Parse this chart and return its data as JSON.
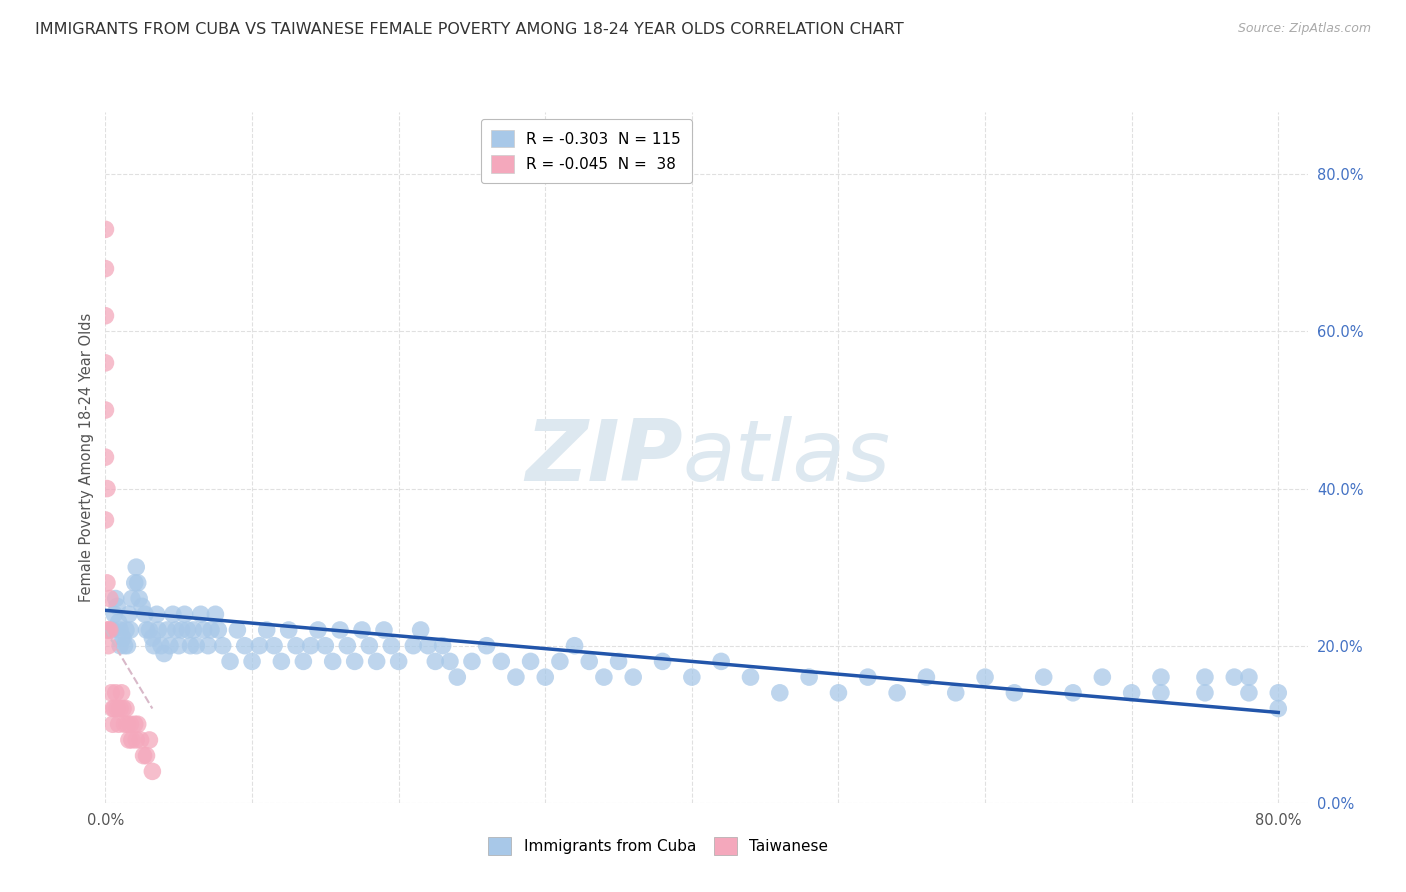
{
  "title": "IMMIGRANTS FROM CUBA VS TAIWANESE FEMALE POVERTY AMONG 18-24 YEAR OLDS CORRELATION CHART",
  "source": "Source: ZipAtlas.com",
  "ylabel": "Female Poverty Among 18-24 Year Olds",
  "legend_rn": [
    {
      "R": "-0.303",
      "N": "115",
      "color": "#a8c8e8"
    },
    {
      "R": "-0.045",
      "N": " 38",
      "color": "#f4a8bc"
    }
  ],
  "legend_bottom": [
    {
      "label": "Immigrants from Cuba",
      "color": "#a8c8e8"
    },
    {
      "label": "Taiwanese",
      "color": "#f4a8bc"
    }
  ],
  "watermark_zip": "ZIP",
  "watermark_atlas": "atlas",
  "background_color": "#ffffff",
  "grid_color": "#e0e0e0",
  "ytick_values": [
    0.0,
    0.2,
    0.4,
    0.6,
    0.8
  ],
  "xtick_values": [
    0.0,
    0.1,
    0.2,
    0.3,
    0.4,
    0.5,
    0.6,
    0.7,
    0.8
  ],
  "xlim": [
    0.0,
    0.82
  ],
  "ylim": [
    0.0,
    0.88
  ],
  "cuba_color": "#a8c8e8",
  "taiwan_color": "#f4a8bc",
  "trendline_cuba_color": "#2255aa",
  "trendline_taiwan_color": "#d8b8c8",
  "cuba_x": [
    0.005,
    0.006,
    0.007,
    0.008,
    0.009,
    0.01,
    0.01,
    0.012,
    0.013,
    0.014,
    0.015,
    0.016,
    0.017,
    0.018,
    0.02,
    0.021,
    0.022,
    0.023,
    0.025,
    0.027,
    0.028,
    0.03,
    0.032,
    0.033,
    0.035,
    0.036,
    0.038,
    0.04,
    0.042,
    0.044,
    0.046,
    0.048,
    0.05,
    0.052,
    0.054,
    0.056,
    0.058,
    0.06,
    0.062,
    0.065,
    0.067,
    0.07,
    0.072,
    0.075,
    0.077,
    0.08,
    0.085,
    0.09,
    0.095,
    0.1,
    0.105,
    0.11,
    0.115,
    0.12,
    0.125,
    0.13,
    0.135,
    0.14,
    0.145,
    0.15,
    0.155,
    0.16,
    0.165,
    0.17,
    0.175,
    0.18,
    0.185,
    0.19,
    0.195,
    0.2,
    0.21,
    0.215,
    0.22,
    0.225,
    0.23,
    0.235,
    0.24,
    0.25,
    0.26,
    0.27,
    0.28,
    0.29,
    0.3,
    0.31,
    0.32,
    0.33,
    0.34,
    0.35,
    0.36,
    0.38,
    0.4,
    0.42,
    0.44,
    0.46,
    0.48,
    0.5,
    0.52,
    0.54,
    0.56,
    0.58,
    0.6,
    0.62,
    0.64,
    0.66,
    0.68,
    0.7,
    0.72,
    0.75,
    0.77,
    0.78,
    0.8,
    0.8,
    0.78,
    0.75,
    0.72
  ],
  "cuba_y": [
    0.22,
    0.24,
    0.26,
    0.25,
    0.23,
    0.22,
    0.2,
    0.21,
    0.2,
    0.22,
    0.2,
    0.24,
    0.22,
    0.26,
    0.28,
    0.3,
    0.28,
    0.26,
    0.25,
    0.24,
    0.22,
    0.22,
    0.21,
    0.2,
    0.24,
    0.22,
    0.2,
    0.19,
    0.22,
    0.2,
    0.24,
    0.22,
    0.2,
    0.22,
    0.24,
    0.22,
    0.2,
    0.22,
    0.2,
    0.24,
    0.22,
    0.2,
    0.22,
    0.24,
    0.22,
    0.2,
    0.18,
    0.22,
    0.2,
    0.18,
    0.2,
    0.22,
    0.2,
    0.18,
    0.22,
    0.2,
    0.18,
    0.2,
    0.22,
    0.2,
    0.18,
    0.22,
    0.2,
    0.18,
    0.22,
    0.2,
    0.18,
    0.22,
    0.2,
    0.18,
    0.2,
    0.22,
    0.2,
    0.18,
    0.2,
    0.18,
    0.16,
    0.18,
    0.2,
    0.18,
    0.16,
    0.18,
    0.16,
    0.18,
    0.2,
    0.18,
    0.16,
    0.18,
    0.16,
    0.18,
    0.16,
    0.18,
    0.16,
    0.14,
    0.16,
    0.14,
    0.16,
    0.14,
    0.16,
    0.14,
    0.16,
    0.14,
    0.16,
    0.14,
    0.16,
    0.14,
    0.16,
    0.14,
    0.16,
    0.14,
    0.12,
    0.14,
    0.16,
    0.16,
    0.14
  ],
  "taiwan_x": [
    0.0,
    0.0,
    0.0,
    0.0,
    0.0,
    0.0,
    0.0,
    0.001,
    0.001,
    0.001,
    0.002,
    0.002,
    0.003,
    0.003,
    0.004,
    0.005,
    0.005,
    0.006,
    0.007,
    0.008,
    0.009,
    0.01,
    0.011,
    0.012,
    0.013,
    0.014,
    0.015,
    0.016,
    0.017,
    0.018,
    0.02,
    0.021,
    0.022,
    0.024,
    0.026,
    0.028,
    0.03,
    0.032
  ],
  "taiwan_y": [
    0.73,
    0.68,
    0.62,
    0.56,
    0.5,
    0.44,
    0.36,
    0.4,
    0.28,
    0.22,
    0.22,
    0.2,
    0.26,
    0.22,
    0.14,
    0.12,
    0.1,
    0.12,
    0.14,
    0.12,
    0.1,
    0.12,
    0.14,
    0.12,
    0.1,
    0.12,
    0.1,
    0.08,
    0.1,
    0.08,
    0.1,
    0.08,
    0.1,
    0.08,
    0.06,
    0.06,
    0.08,
    0.04
  ],
  "cuba_trendline_x": [
    0.0,
    0.8
  ],
  "cuba_trendline_y": [
    0.245,
    0.115
  ],
  "taiwan_trendline_x": [
    0.0,
    0.032
  ],
  "taiwan_trendline_y": [
    0.22,
    0.12
  ]
}
